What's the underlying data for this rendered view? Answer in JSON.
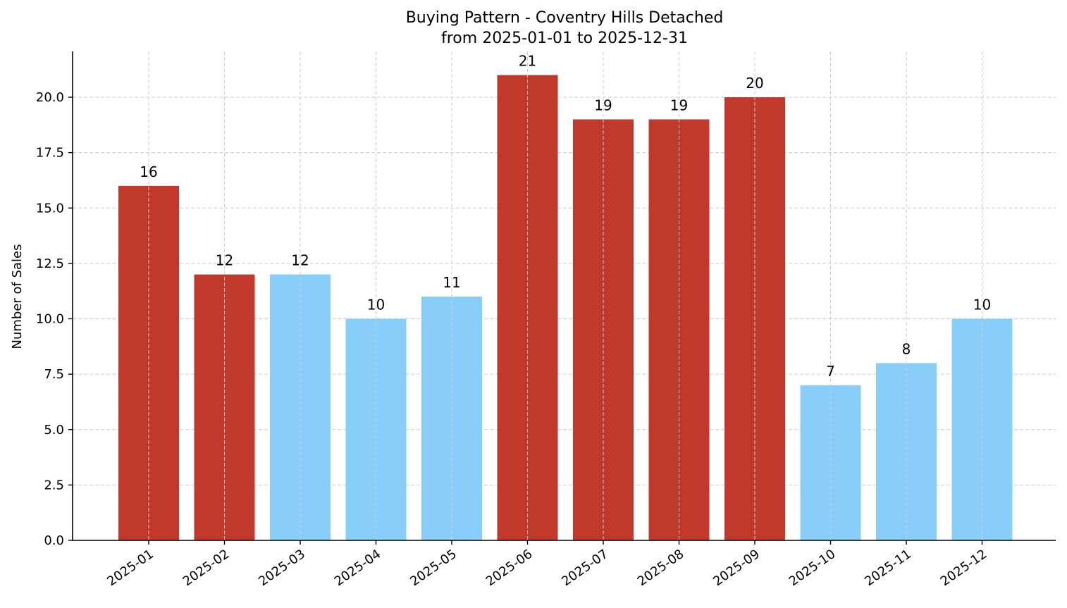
{
  "chart_data": {
    "type": "bar",
    "title": "Buying Pattern - Coventry Hills Detached",
    "subtitle": "from 2025-01-01 to 2025-12-31",
    "xlabel": "",
    "ylabel": "Number of Sales",
    "categories": [
      "2025-01",
      "2025-02",
      "2025-03",
      "2025-04",
      "2025-05",
      "2025-06",
      "2025-07",
      "2025-08",
      "2025-09",
      "2025-10",
      "2025-11",
      "2025-12"
    ],
    "values": [
      16,
      12,
      12,
      10,
      11,
      21,
      19,
      19,
      20,
      7,
      8,
      10
    ],
    "bar_colors": [
      "#c0392b",
      "#c0392b",
      "#87cefa",
      "#87cefa",
      "#87cefa",
      "#c0392b",
      "#c0392b",
      "#c0392b",
      "#c0392b",
      "#87cefa",
      "#87cefa",
      "#87cefa"
    ],
    "yticks": [
      0.0,
      2.5,
      5.0,
      7.5,
      10.0,
      12.5,
      15.0,
      17.5,
      20.0
    ],
    "ytick_labels": [
      "0.0",
      "2.5",
      "5.0",
      "7.5",
      "10.0",
      "12.5",
      "15.0",
      "17.5",
      "20.0"
    ],
    "ylim": [
      0,
      22.05
    ],
    "grid": true,
    "data_labels": true,
    "legend": null
  },
  "colors": {
    "high": "#c0392b",
    "low": "#87cefa",
    "grid": "#cccccc",
    "axis": "#000000"
  }
}
